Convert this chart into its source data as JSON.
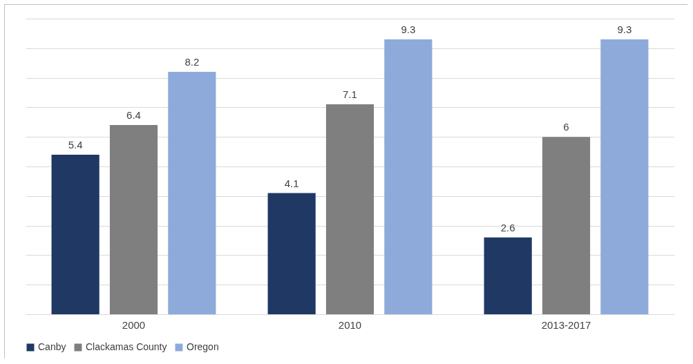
{
  "chart_data": {
    "type": "bar",
    "categories": [
      "2000",
      "2010",
      "2013-2017"
    ],
    "series": [
      {
        "name": "Canby",
        "color": "#1f3864",
        "values": [
          5.4,
          4.1,
          2.6
        ]
      },
      {
        "name": "Clackamas County",
        "color": "#7f7f7f",
        "values": [
          6.4,
          7.1,
          6
        ]
      },
      {
        "name": "Oregon",
        "color": "#8eaadb",
        "values": [
          8.2,
          9.3,
          9.3
        ]
      }
    ],
    "ylim": [
      0,
      10
    ],
    "yticks": [
      {
        "value": 0,
        "label": null
      },
      {
        "value": 1,
        "label": null
      },
      {
        "value": 2,
        "label": null
      },
      {
        "value": 3,
        "label": null
      },
      {
        "value": 4,
        "label": null
      },
      {
        "value": 5,
        "label": null
      },
      {
        "value": 6,
        "label": null
      },
      {
        "value": 7,
        "label": null
      },
      {
        "value": 8,
        "label": null
      },
      {
        "value": 9,
        "label": null
      },
      {
        "value": 10,
        "label": null
      }
    ],
    "tick_labels": "x",
    "grid": "y",
    "legend": "bottom",
    "data_labels": true
  }
}
